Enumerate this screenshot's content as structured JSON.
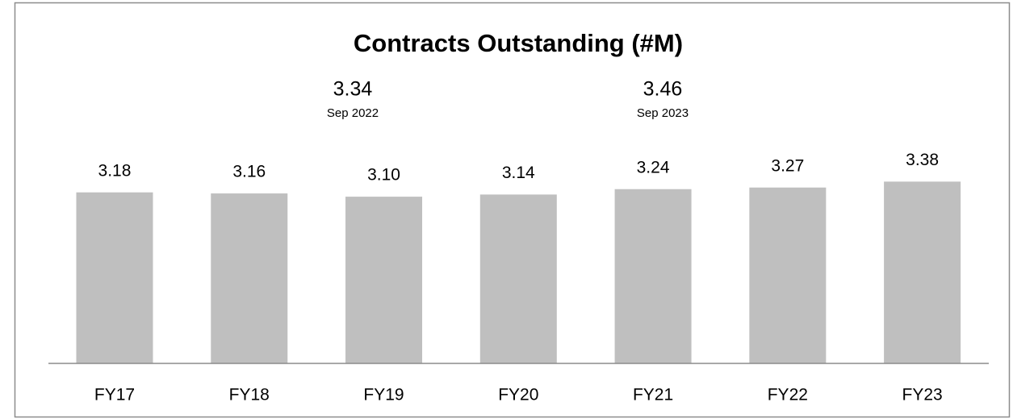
{
  "chart_data": {
    "type": "bar",
    "title": "Contracts Outstanding (#M)",
    "categories": [
      "FY17",
      "FY18",
      "FY19",
      "FY20",
      "FY21",
      "FY22",
      "FY23"
    ],
    "values": [
      3.18,
      3.16,
      3.1,
      3.14,
      3.24,
      3.27,
      3.38
    ],
    "value_labels": [
      "3.18",
      "3.16",
      "3.10",
      "3.14",
      "3.24",
      "3.27",
      "3.38"
    ],
    "color": "#bfbfbf",
    "ylim": [
      0,
      4
    ],
    "annotations": [
      {
        "value": "3.34",
        "label": "Sep 2022"
      },
      {
        "value": "3.46",
        "label": "Sep 2023"
      }
    ]
  }
}
